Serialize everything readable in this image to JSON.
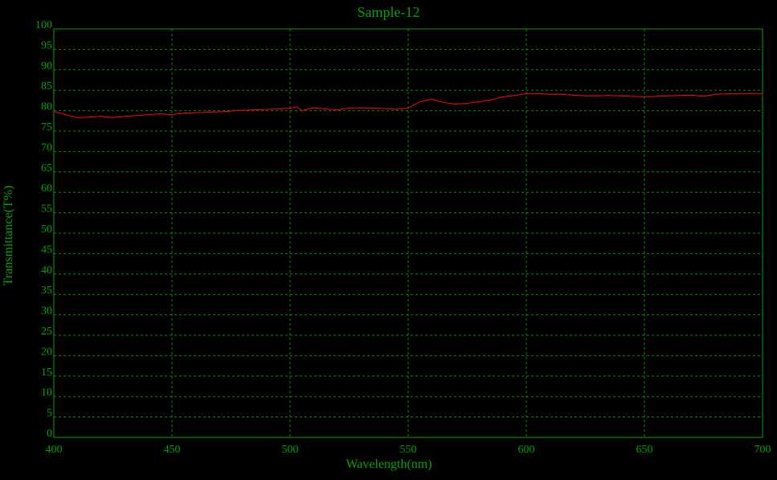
{
  "chart_data": {
    "type": "line",
    "title": "Sample-12",
    "xlabel": "Wavelength(nm)",
    "ylabel": "Transmittance(T%)",
    "xlim": [
      400,
      700
    ],
    "ylim": [
      0,
      100
    ],
    "x_ticks": [
      400,
      450,
      500,
      550,
      600,
      650,
      700
    ],
    "y_ticks": [
      0,
      5,
      10,
      15,
      20,
      25,
      30,
      35,
      40,
      45,
      50,
      55,
      60,
      65,
      70,
      75,
      80,
      85,
      90,
      95,
      100
    ],
    "grid": true,
    "colors": {
      "background": "#000000",
      "axes": "#00a000",
      "grid": "#008c00",
      "text": "#00a000",
      "series": "#ff0000"
    },
    "series": [
      {
        "x": [
          400,
          405,
          410,
          415,
          420,
          425,
          430,
          435,
          440,
          445,
          450,
          455,
          460,
          465,
          470,
          475,
          480,
          485,
          490,
          495,
          500,
          503,
          505,
          510,
          515,
          520,
          525,
          530,
          535,
          540,
          545,
          550,
          555,
          560,
          565,
          570,
          575,
          580,
          585,
          590,
          595,
          600,
          605,
          610,
          615,
          620,
          625,
          630,
          635,
          640,
          645,
          650,
          655,
          660,
          665,
          670,
          675,
          680,
          685,
          690,
          695,
          700
        ],
        "values": [
          79.8,
          79.0,
          78.3,
          78.4,
          78.6,
          78.3,
          78.6,
          78.8,
          79.0,
          79.2,
          79.0,
          79.4,
          79.5,
          79.6,
          79.7,
          79.9,
          80.1,
          80.2,
          80.3,
          80.4,
          80.6,
          80.9,
          80.0,
          80.7,
          80.4,
          80.2,
          80.6,
          80.7,
          80.6,
          80.5,
          80.3,
          80.6,
          82.2,
          82.8,
          82.0,
          81.6,
          81.8,
          82.2,
          82.6,
          83.4,
          83.7,
          84.2,
          84.2,
          84.0,
          84.0,
          83.8,
          83.6,
          83.6,
          83.7,
          83.6,
          83.5,
          83.4,
          83.5,
          83.6,
          83.7,
          83.8,
          83.5,
          84.0,
          84.1,
          84.2,
          84.2,
          84.2
        ]
      }
    ]
  }
}
